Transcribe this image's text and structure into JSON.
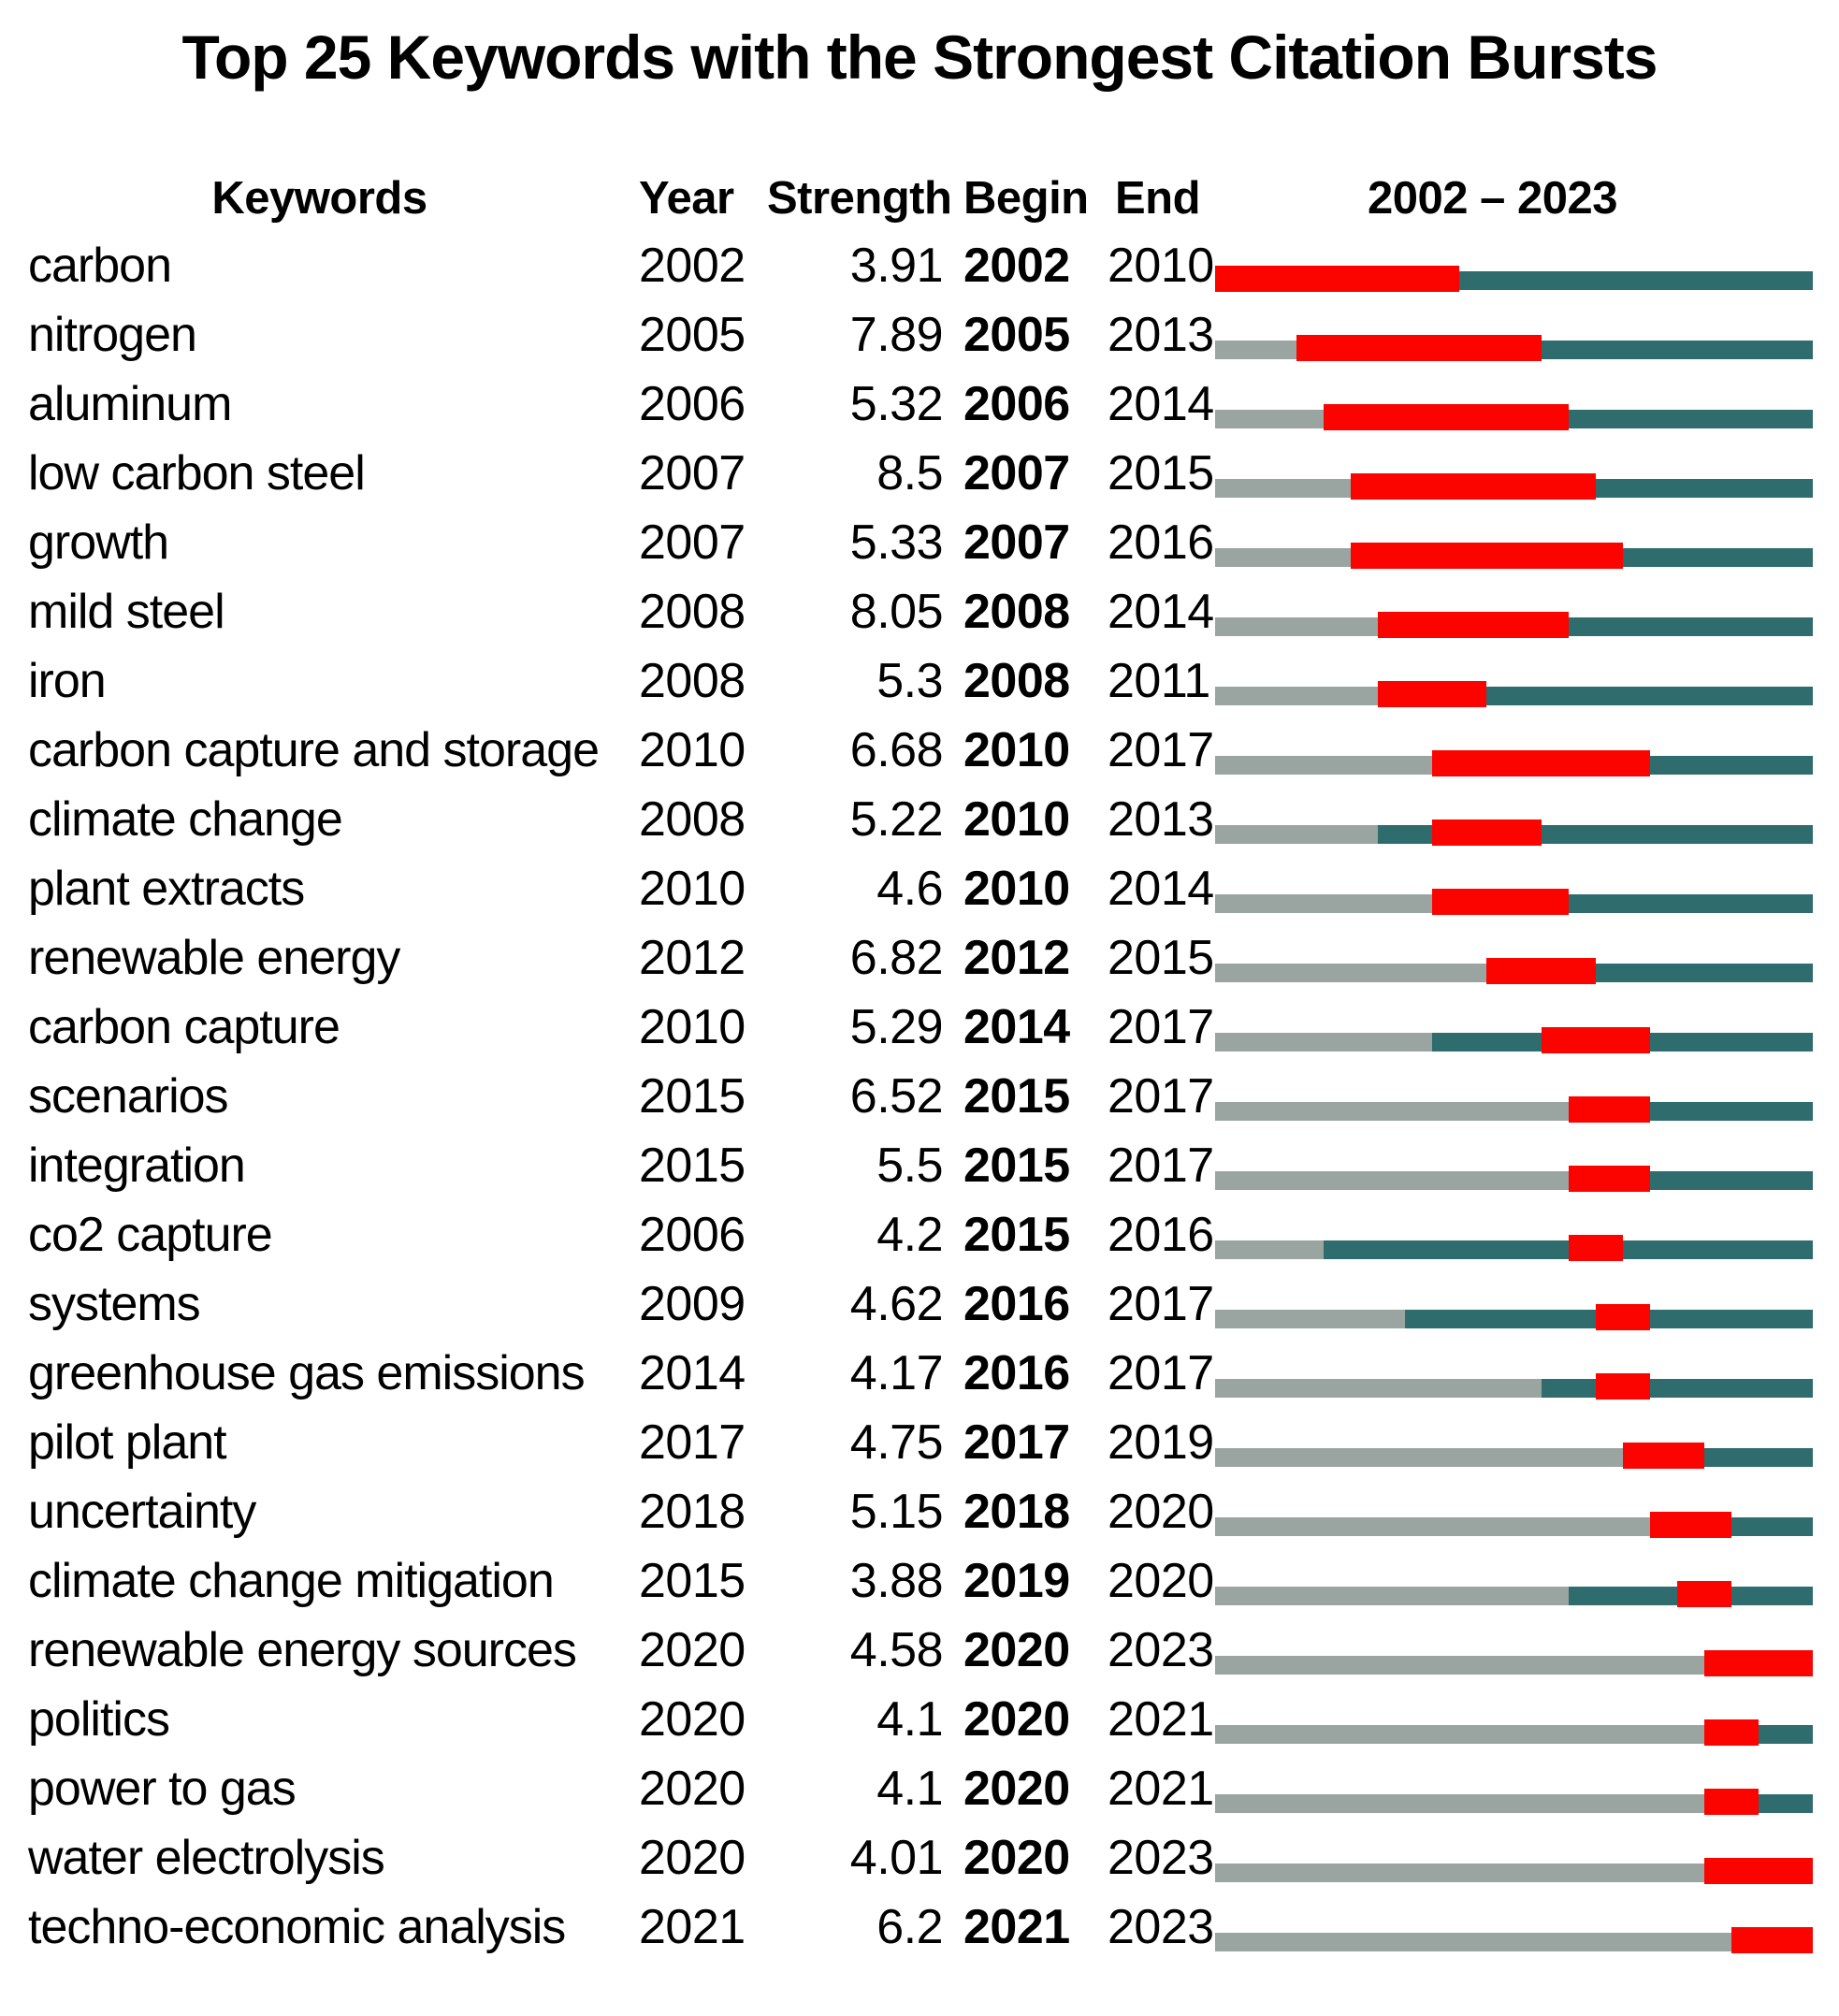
{
  "chart_data": {
    "type": "table",
    "title": "Top 25 Keywords with the Strongest Citation Bursts",
    "columns": [
      "Keywords",
      "Year",
      "Strength",
      "Begin",
      "End",
      "2002 – 2023"
    ],
    "timeline": {
      "start": 2002,
      "end": 2023,
      "header": "2002 – 2023",
      "years_total": 22
    },
    "colors": {
      "burst_red": "#fb0400",
      "active_teal": "#2e6c6d",
      "inactive_gray": "#9aa5a1",
      "text": "#000000",
      "background": "#ffffff"
    },
    "rows": [
      {
        "keyword": "carbon",
        "year": "2002",
        "strength": "3.91",
        "begin": "2002",
        "end": "2010"
      },
      {
        "keyword": "nitrogen",
        "year": "2005",
        "strength": "7.89",
        "begin": "2005",
        "end": "2013"
      },
      {
        "keyword": "aluminum",
        "year": "2006",
        "strength": "5.32",
        "begin": "2006",
        "end": "2014"
      },
      {
        "keyword": "low carbon steel",
        "year": "2007",
        "strength": "8.5",
        "begin": "2007",
        "end": "2015"
      },
      {
        "keyword": "growth",
        "year": "2007",
        "strength": "5.33",
        "begin": "2007",
        "end": "2016"
      },
      {
        "keyword": "mild steel",
        "year": "2008",
        "strength": "8.05",
        "begin": "2008",
        "end": "2014"
      },
      {
        "keyword": "iron",
        "year": "2008",
        "strength": "5.3",
        "begin": "2008",
        "end": "2011"
      },
      {
        "keyword": "carbon capture and storage",
        "year": "2010",
        "strength": "6.68",
        "begin": "2010",
        "end": "2017"
      },
      {
        "keyword": "climate change",
        "year": "2008",
        "strength": "5.22",
        "begin": "2010",
        "end": "2013"
      },
      {
        "keyword": "plant extracts",
        "year": "2010",
        "strength": "4.6",
        "begin": "2010",
        "end": "2014"
      },
      {
        "keyword": "renewable energy",
        "year": "2012",
        "strength": "6.82",
        "begin": "2012",
        "end": "2015"
      },
      {
        "keyword": "carbon capture",
        "year": "2010",
        "strength": "5.29",
        "begin": "2014",
        "end": "2017"
      },
      {
        "keyword": "scenarios",
        "year": "2015",
        "strength": "6.52",
        "begin": "2015",
        "end": "2017"
      },
      {
        "keyword": "integration",
        "year": "2015",
        "strength": "5.5",
        "begin": "2015",
        "end": "2017"
      },
      {
        "keyword": "co2 capture",
        "year": "2006",
        "strength": "4.2",
        "begin": "2015",
        "end": "2016"
      },
      {
        "keyword": "systems",
        "year": "2009",
        "strength": "4.62",
        "begin": "2016",
        "end": "2017"
      },
      {
        "keyword": "greenhouse gas emissions",
        "year": "2014",
        "strength": "4.17",
        "begin": "2016",
        "end": "2017"
      },
      {
        "keyword": "pilot plant",
        "year": "2017",
        "strength": "4.75",
        "begin": "2017",
        "end": "2019"
      },
      {
        "keyword": "uncertainty",
        "year": "2018",
        "strength": "5.15",
        "begin": "2018",
        "end": "2020"
      },
      {
        "keyword": "climate change mitigation",
        "year": "2015",
        "strength": "3.88",
        "begin": "2019",
        "end": "2020"
      },
      {
        "keyword": "renewable energy sources",
        "year": "2020",
        "strength": "4.58",
        "begin": "2020",
        "end": "2023"
      },
      {
        "keyword": "politics",
        "year": "2020",
        "strength": "4.1",
        "begin": "2020",
        "end": "2021"
      },
      {
        "keyword": "power to gas",
        "year": "2020",
        "strength": "4.1",
        "begin": "2020",
        "end": "2021"
      },
      {
        "keyword": "water electrolysis",
        "year": "2020",
        "strength": "4.01",
        "begin": "2020",
        "end": "2023"
      },
      {
        "keyword": "techno-economic analysis",
        "year": "2021",
        "strength": "6.2",
        "begin": "2021",
        "end": "2023"
      }
    ]
  }
}
